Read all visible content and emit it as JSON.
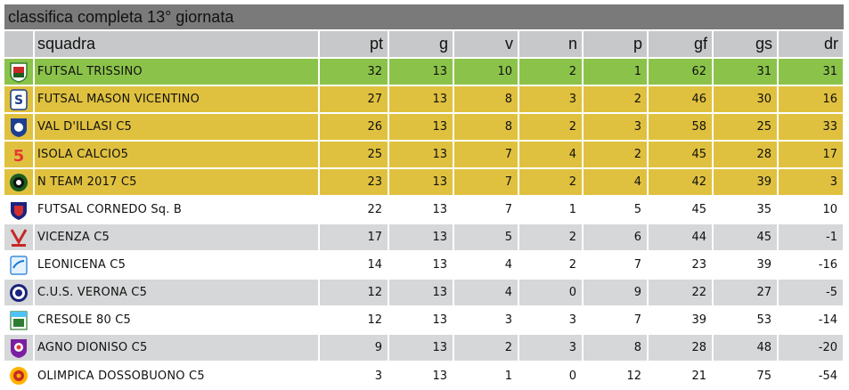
{
  "title": "classifica completa 13° giornata",
  "headers": {
    "team": "squadra",
    "pt": "pt",
    "g": "g",
    "v": "v",
    "n": "n",
    "p": "p",
    "gf": "gf",
    "gs": "gs",
    "dr": "dr"
  },
  "colors": {
    "first": "#8bc34a",
    "playoff": "#e0c13f",
    "stripe": "#d6d7d8",
    "header": "#c7c8c9",
    "title_bar": "#7a7a7a"
  },
  "rows": [
    {
      "team": "FUTSAL TRISSINO",
      "pt": "32",
      "g": "13",
      "v": "10",
      "n": "2",
      "p": "1",
      "gf": "62",
      "gs": "31",
      "dr": "31",
      "logo": "futsal-trissino-logo"
    },
    {
      "team": "FUTSAL MASON VICENTINO",
      "pt": "27",
      "g": "13",
      "v": "8",
      "n": "3",
      "p": "2",
      "gf": "46",
      "gs": "30",
      "dr": "16",
      "logo": "futsal-mason-logo"
    },
    {
      "team": "VAL D'ILLASI C5",
      "pt": "26",
      "g": "13",
      "v": "8",
      "n": "2",
      "p": "3",
      "gf": "58",
      "gs": "25",
      "dr": "33",
      "logo": "val-dillasi-logo"
    },
    {
      "team": "ISOLA CALCIO5",
      "pt": "25",
      "g": "13",
      "v": "7",
      "n": "4",
      "p": "2",
      "gf": "45",
      "gs": "28",
      "dr": "17",
      "logo": "isola-calcio5-logo"
    },
    {
      "team": "N TEAM 2017 C5",
      "pt": "23",
      "g": "13",
      "v": "7",
      "n": "2",
      "p": "4",
      "gf": "42",
      "gs": "39",
      "dr": "3",
      "logo": "n-team-logo"
    },
    {
      "team": "FUTSAL CORNEDO Sq. B",
      "pt": "22",
      "g": "13",
      "v": "7",
      "n": "1",
      "p": "5",
      "gf": "45",
      "gs": "35",
      "dr": "10",
      "logo": "futsal-cornedo-logo"
    },
    {
      "team": "VICENZA C5",
      "pt": "17",
      "g": "13",
      "v": "5",
      "n": "2",
      "p": "6",
      "gf": "44",
      "gs": "45",
      "dr": "-1",
      "logo": "vicenza-c5-logo"
    },
    {
      "team": "LEONICENA C5",
      "pt": "14",
      "g": "13",
      "v": "4",
      "n": "2",
      "p": "7",
      "gf": "23",
      "gs": "39",
      "dr": "-16",
      "logo": "leonicena-logo"
    },
    {
      "team": "C.U.S. VERONA C5",
      "pt": "12",
      "g": "13",
      "v": "4",
      "n": "0",
      "p": "9",
      "gf": "22",
      "gs": "27",
      "dr": "-5",
      "logo": "cus-verona-logo"
    },
    {
      "team": "CRESOLE 80 C5",
      "pt": "12",
      "g": "13",
      "v": "3",
      "n": "3",
      "p": "7",
      "gf": "39",
      "gs": "53",
      "dr": "-14",
      "logo": "cresole-logo"
    },
    {
      "team": "AGNO DIONISO C5",
      "pt": "9",
      "g": "13",
      "v": "2",
      "n": "3",
      "p": "8",
      "gf": "28",
      "gs": "48",
      "dr": "-20",
      "logo": "agno-dioniso-logo"
    },
    {
      "team": "OLIMPICA DOSSOBUONO C5",
      "pt": "3",
      "g": "13",
      "v": "1",
      "n": "0",
      "p": "12",
      "gf": "21",
      "gs": "75",
      "dr": "-54",
      "logo": "olimpica-logo"
    }
  ]
}
